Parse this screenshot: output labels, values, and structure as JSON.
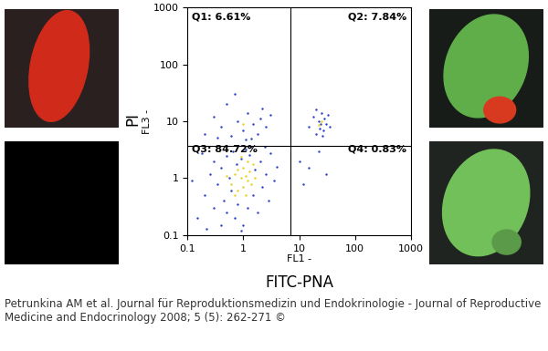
{
  "chart_data": {
    "type": "scatter",
    "xlabel": "FL1 -",
    "xlabel2": "FITC-PNA",
    "ylabel": "FL3 -",
    "ylabel2": "PI",
    "log": true,
    "xlim": [
      0.1,
      1000
    ],
    "ylim": [
      0.1,
      1000
    ],
    "xticks": [
      0.1,
      1,
      10,
      100,
      1000
    ],
    "yticks": [
      0.1,
      1,
      10,
      100,
      1000
    ],
    "gates": {
      "x": 7,
      "y": 3.7
    },
    "annotations": [
      "Q1: 6.61%",
      "Q2: 7.84%",
      "Q3: 84.72%",
      "Q4: 0.83%"
    ],
    "caption": "Petrunkina AM et al. Journal für Reproduktionsmedizin und Endokrinologie - Journal of Reproductive Medicine and Endocrinology 2008; 5 (5): 262-271 ©",
    "series": [
      {
        "color": "#2a3fc4",
        "marker": "point",
        "x": [
          0.15,
          0.2,
          0.25,
          0.3,
          0.3,
          0.35,
          0.4,
          0.4,
          0.45,
          0.5,
          0.5,
          0.55,
          0.6,
          0.65,
          0.7,
          0.75,
          0.8,
          0.9,
          1.0,
          1.1,
          1.2,
          1.3,
          1.5,
          1.6,
          1.8,
          2.0,
          2.2,
          2.5,
          2.8,
          3.0,
          3.5,
          4.0,
          0.12,
          0.18,
          0.22,
          0.9,
          2.4,
          1.4,
          0.2,
          0.3,
          0.4,
          0.5,
          0.6,
          0.8,
          1.0,
          1.2,
          1.5,
          1.8,
          2.0,
          2.5,
          3.0,
          0.7,
          1.1,
          1.4,
          0.35,
          2.2,
          15,
          18,
          20,
          22,
          24,
          25,
          27,
          28,
          30,
          32,
          20,
          26,
          35,
          23,
          10,
          15,
          22,
          30,
          12
        ],
        "values": [
          0.2,
          0.5,
          1.2,
          0.3,
          2.0,
          0.8,
          0.15,
          1.5,
          0.4,
          2.5,
          0.25,
          1.0,
          0.6,
          3.0,
          0.2,
          1.8,
          0.35,
          2.2,
          0.15,
          3.2,
          0.3,
          2.6,
          0.5,
          1.4,
          0.25,
          2.0,
          0.7,
          1.2,
          0.4,
          2.8,
          0.9,
          1.6,
          0.9,
          2.8,
          0.13,
          0.12,
          3.5,
          3.6,
          6,
          12,
          8,
          20,
          5.5,
          10,
          7,
          14,
          9,
          6,
          11,
          8,
          13,
          30,
          4.8,
          5,
          5.2,
          17,
          8,
          12,
          6,
          10,
          9,
          14,
          7,
          11,
          9,
          13,
          16,
          5.5,
          8,
          7.5,
          2,
          1.5,
          3,
          1.2,
          0.8
        ]
      },
      {
        "color": "#e8d020",
        "marker": "point",
        "x": [
          0.6,
          0.7,
          0.8,
          0.9,
          1.0,
          1.0,
          1.1,
          1.2,
          1.3,
          0.8,
          0.7,
          1.4,
          1.6,
          0.5,
          1.2,
          0.9,
          1.1,
          1.5,
          1.0,
          25,
          22
        ],
        "values": [
          0.8,
          1.2,
          0.6,
          1.0,
          1.5,
          0.7,
          1.1,
          0.9,
          1.3,
          1.4,
          0.5,
          0.8,
          1.0,
          1.1,
          2.0,
          2.4,
          0.5,
          1.8,
          9,
          10,
          8.5
        ]
      }
    ]
  }
}
